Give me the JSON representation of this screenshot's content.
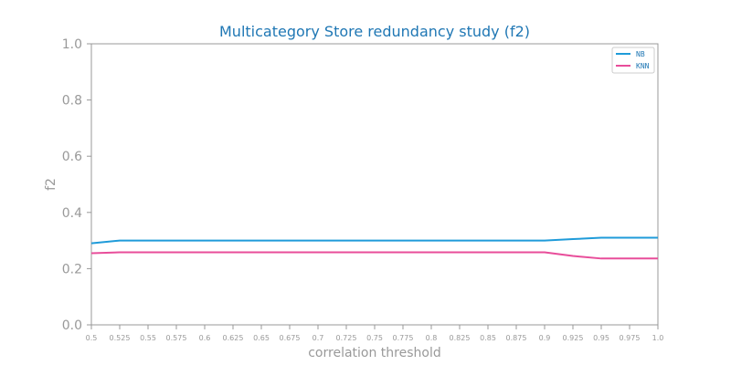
{
  "chart_data": {
    "type": "line",
    "title": "Multicategory Store redundancy study (f2)",
    "xlabel": "correlation threshold",
    "ylabel": "f2",
    "x": [
      0.5,
      0.525,
      0.55,
      0.575,
      0.6,
      0.625,
      0.65,
      0.675,
      0.7,
      0.725,
      0.75,
      0.775,
      0.8,
      0.825,
      0.85,
      0.875,
      0.9,
      0.925,
      0.95,
      0.975,
      1.0
    ],
    "xtick_labels": [
      "0.5",
      "0.525",
      "0.55",
      "0.575",
      "0.6",
      "0.625",
      "0.65",
      "0.675",
      "0.7",
      "0.725",
      "0.75",
      "0.775",
      "0.8",
      "0.825",
      "0.85",
      "0.875",
      "0.9",
      "0.925",
      "0.95",
      "0.975",
      "1.0"
    ],
    "ytick_labels": [
      "0.0",
      "0.2",
      "0.4",
      "0.6",
      "0.8",
      "1.0"
    ],
    "xlim": [
      0.5,
      1.0
    ],
    "ylim": [
      0.0,
      1.0
    ],
    "grid": false,
    "legend_position": "top-right",
    "series": [
      {
        "name": "NB",
        "color": "#1f9bd9",
        "values": [
          0.29,
          0.3,
          0.3,
          0.3,
          0.3,
          0.3,
          0.3,
          0.3,
          0.3,
          0.3,
          0.3,
          0.3,
          0.3,
          0.3,
          0.3,
          0.3,
          0.3,
          0.305,
          0.31,
          0.31,
          0.31
        ]
      },
      {
        "name": "KNN",
        "color": "#e84d9a",
        "values": [
          0.255,
          0.258,
          0.258,
          0.258,
          0.258,
          0.258,
          0.258,
          0.258,
          0.258,
          0.258,
          0.258,
          0.258,
          0.258,
          0.258,
          0.258,
          0.258,
          0.258,
          0.245,
          0.236,
          0.236,
          0.236
        ]
      }
    ]
  }
}
